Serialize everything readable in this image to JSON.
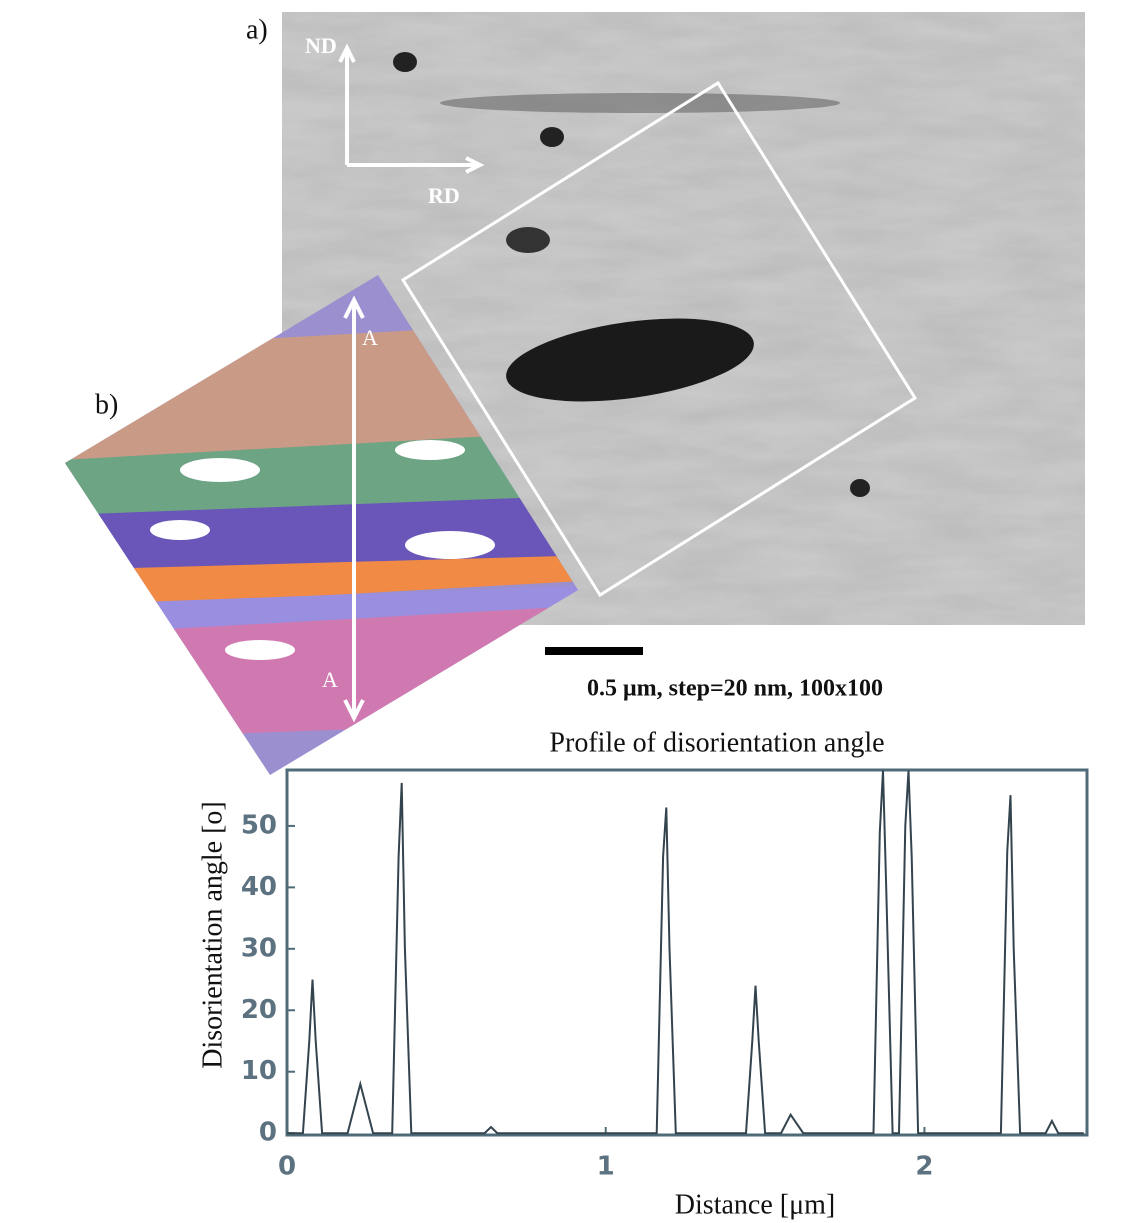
{
  "figure": {
    "panel_a": "a)",
    "panel_b": "b)",
    "nd": "ND",
    "rd": "RD",
    "line_start": "A",
    "line_end": "A",
    "scale_caption": "0.5 μm, step=20 nm, 100x100"
  },
  "chart_data": {
    "type": "line",
    "title": "Profile of disorientation angle",
    "xlabel": "Distance [μm]",
    "ylabel": "Disorientation  angle [o]",
    "color": "#34444e",
    "x": [
      0,
      0.05,
      0.07,
      0.08,
      0.09,
      0.11,
      0.19,
      0.23,
      0.27,
      0.33,
      0.35,
      0.36,
      0.37,
      0.39,
      0.62,
      0.64,
      0.66,
      1.16,
      1.18,
      1.19,
      1.2,
      1.22,
      1.44,
      1.46,
      1.47,
      1.48,
      1.5,
      1.55,
      1.58,
      1.62,
      1.84,
      1.86,
      1.87,
      1.88,
      1.9,
      1.92,
      1.94,
      1.95,
      1.96,
      1.98,
      2.24,
      2.26,
      2.27,
      2.28,
      2.3,
      2.38,
      2.4,
      2.42,
      2.5
    ],
    "values": [
      0,
      0,
      15,
      25,
      15,
      0,
      0,
      8,
      0,
      0,
      45,
      57,
      30,
      0,
      0,
      1,
      0,
      0,
      45,
      53,
      30,
      0,
      0,
      15,
      24,
      15,
      0,
      0,
      3,
      0,
      0,
      49,
      59,
      40,
      0,
      0,
      50,
      59,
      45,
      0,
      0,
      46,
      55,
      30,
      0,
      0,
      2,
      0,
      0
    ],
    "xlim": [
      0,
      2.51
    ],
    "ylim": [
      -0.3,
      59.1
    ],
    "xticks": [
      0,
      1,
      2
    ],
    "yticks": [
      0,
      10,
      20,
      30,
      40,
      50
    ],
    "grid": false
  }
}
